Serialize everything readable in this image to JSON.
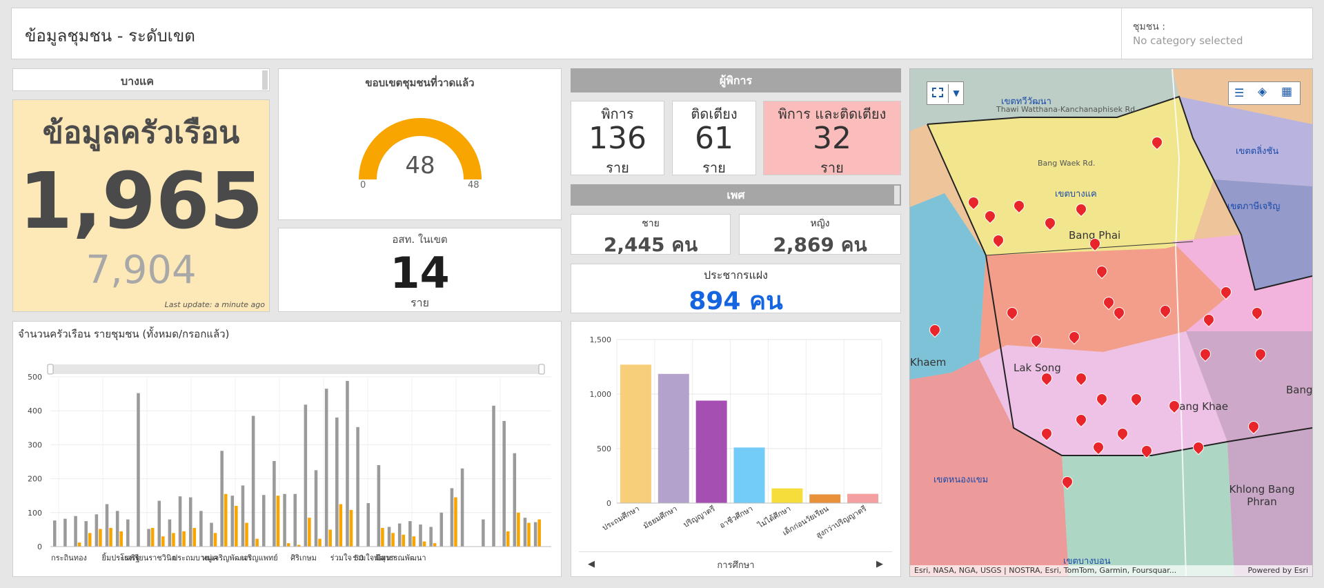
{
  "header": {
    "title": "ข้อมูลชุมชน - ระดับเขต",
    "filter_label": "ชุมชน :",
    "filter_value": "No category selected"
  },
  "district_list": {
    "selected": "บางแค"
  },
  "household": {
    "title": "ข้อมูลครัวเรือน",
    "total": "1,965",
    "filled": "7,904",
    "last_update": "Last update: a minute ago"
  },
  "gauge": {
    "title": "ขอบเขตชุมชนที่วาดแล้ว",
    "value": "48",
    "min": "0",
    "max": "48",
    "fraction": 1.0,
    "color": "#f8a500"
  },
  "health_volunteers": {
    "title": "อสท. ในเขต",
    "value": "14",
    "unit": "ราย"
  },
  "disability": {
    "header": "ผู้พิการ",
    "cards": [
      {
        "label": "พิการ",
        "value": "136",
        "unit": "ราย"
      },
      {
        "label": "ติดเตียง",
        "value": "61",
        "unit": "ราย"
      },
      {
        "label": "พิการ และติดเตียง",
        "value": "32",
        "unit": "ราย"
      }
    ]
  },
  "gender": {
    "header": "เพศ",
    "male_label": "ชาย",
    "male_value": "2,445 คน",
    "female_label": "หญิง",
    "female_value": "2,869 คน"
  },
  "hidden_population": {
    "label": "ประชากรแฝง",
    "value": "894 คน"
  },
  "chart_household": {
    "title": "จำนวนครัวเรือน รายชุมชน (ทั้งหมด/กรอกแล้ว)",
    "ylim": [
      0,
      500
    ],
    "yticks": [
      "0",
      "100",
      "200",
      "300",
      "400",
      "500"
    ],
    "xlabels": [
      "กระถินทอง",
      "ยิ้มประเสริฐ",
      "โรงเรียนราชวินิต",
      "ประถมบางแค",
      "หมู่เจริญพัฒนา",
      "เจริญแพทย์",
      "ศิริเกษม",
      "ร่วมใจ 50",
      "ร่วมใจพัฒนา",
      "มีสุวรรณพัฒนา"
    ],
    "total_color": "#9a9a9a",
    "filled_color": "#f8a500",
    "total": [
      77,
      82,
      90,
      75,
      95,
      125,
      105,
      80,
      452,
      52,
      135,
      80,
      148,
      145,
      105,
      70,
      282,
      150,
      180,
      385,
      152,
      252,
      155,
      155,
      418,
      225,
      465,
      380,
      488,
      352,
      128,
      240,
      58,
      68,
      75,
      65,
      58,
      100,
      172,
      230,
      0,
      80,
      415,
      370,
      275,
      85,
      72
    ],
    "filled": [
      0,
      0,
      12,
      40,
      52,
      55,
      45,
      0,
      0,
      55,
      30,
      40,
      45,
      55,
      0,
      40,
      155,
      120,
      70,
      23,
      0,
      150,
      10,
      5,
      85,
      23,
      50,
      125,
      108,
      0,
      0,
      55,
      40,
      35,
      30,
      15,
      10,
      0,
      145,
      0,
      0,
      0,
      0,
      45,
      100,
      70,
      80
    ]
  },
  "chart_education": {
    "type": "bar",
    "xlabel": "การศึกษา",
    "ylim": [
      0,
      1500
    ],
    "yticks": [
      "0",
      "500",
      "1,000",
      "1,500"
    ],
    "categories": [
      "ประถมศึกษา",
      "มัธยมศึกษา",
      "ปริญญาตรี",
      "อาชีวศึกษา",
      "ไม่ได้ศึกษา",
      "เด็กก่อนวัยเรียน",
      "สูงกว่าปริญญาตรี"
    ],
    "values": [
      1270,
      1185,
      940,
      510,
      135,
      80,
      85
    ],
    "colors": [
      "#f7cf7a",
      "#b3a3cc",
      "#a64fb3",
      "#73ccf7",
      "#f7dd3b",
      "#e8913a",
      "#f5a0a0"
    ]
  },
  "map": {
    "attribution": "Esri, NASA, NGA, USGS | NOSTRA, Esri, TomTom, Garmin, Foursquar...",
    "powered": "Powered by Esri",
    "labels": [
      "เขตทวีวัฒนา",
      "เขตตลิ่งชัน",
      "เขตบางแค",
      "เขตภาษีเจริญ",
      "เขตหนองแขม",
      "เขตบางบอน",
      "Bang Waek Rd.",
      "Bang Phai",
      "Lak Song",
      "Bang Khae",
      "Khlong Bang Phran",
      "Khaem",
      "Bang",
      "Thawi Watthana-Kanchanaphisek Rd."
    ]
  }
}
